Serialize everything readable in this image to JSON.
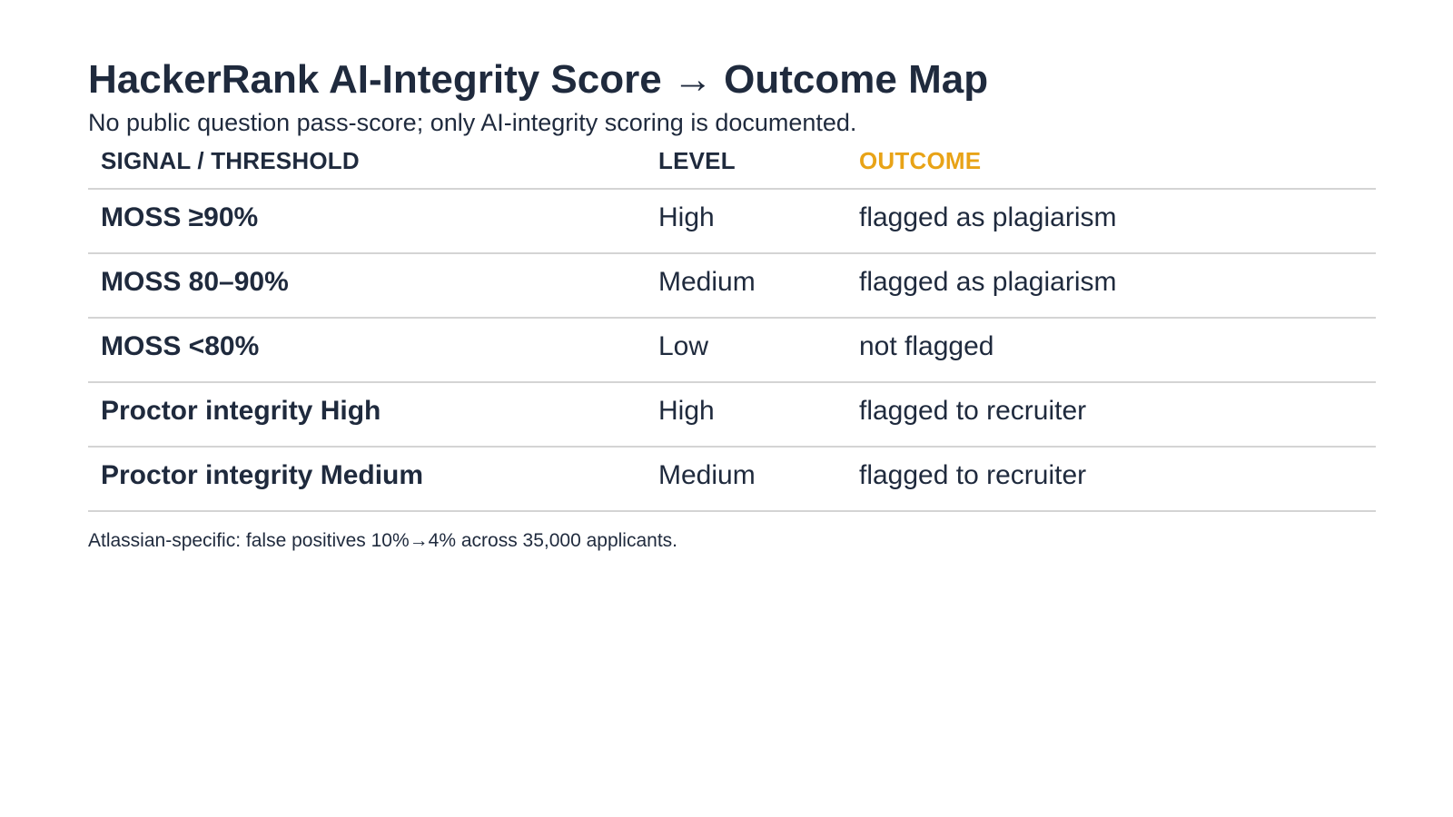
{
  "title": "HackerRank AI-Integrity Score → Outcome Map",
  "subtitle": "No public question pass-score; only AI-integrity scoring is documented.",
  "colors": {
    "text": "#1f2a3d",
    "accent": "#e8a317",
    "divider": "#d4d4d4"
  },
  "table": {
    "headers": {
      "signal": "SIGNAL / THRESHOLD",
      "level": "LEVEL",
      "outcome": "OUTCOME"
    },
    "rows": [
      {
        "signal": "MOSS ≥90%",
        "level": "High",
        "outcome": "flagged as plagiarism"
      },
      {
        "signal": "MOSS 80–90%",
        "level": "Medium",
        "outcome": "flagged as plagiarism"
      },
      {
        "signal": "MOSS <80%",
        "level": "Low",
        "outcome": "not flagged"
      },
      {
        "signal": "Proctor integrity High",
        "level": "High",
        "outcome": "flagged to recruiter"
      },
      {
        "signal": "Proctor integrity Medium",
        "level": "Medium",
        "outcome": "flagged to recruiter"
      }
    ]
  },
  "footnote": "Atlassian-specific: false positives 10%→4% across 35,000 applicants."
}
